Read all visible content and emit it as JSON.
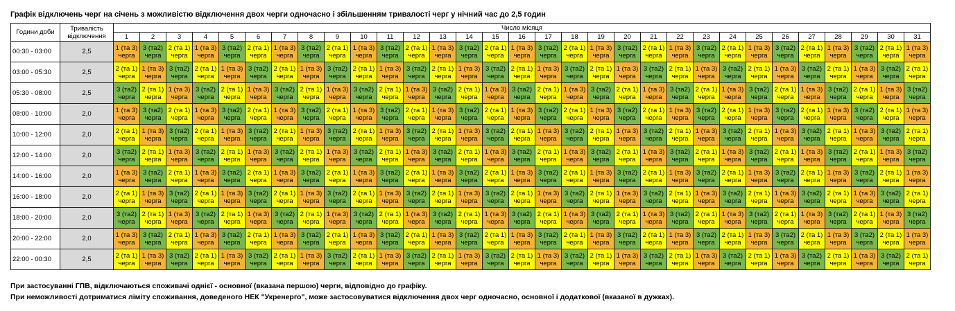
{
  "title": "Графік відключень черг на січень з можливістю відключення двох черги одночасно і збільшенням тривалості черг у нічний час до 2,5 годин",
  "table": {
    "header": {
      "hours": "Години доби",
      "duration": "Тривалість відключення",
      "days_label": "Число місяця",
      "days": [
        1,
        2,
        3,
        4,
        5,
        6,
        7,
        8,
        9,
        10,
        11,
        12,
        13,
        14,
        15,
        16,
        17,
        18,
        19,
        20,
        21,
        22,
        23,
        24,
        25,
        26,
        27,
        28,
        29,
        30,
        31
      ]
    },
    "caption": "черга",
    "queue_colors": {
      "1 (та 3)": "#f5b335",
      "3 (та2)": "#79b84d",
      "2 (та 1)": "#ffff00"
    },
    "rows": [
      {
        "time": "00:30 - 03:00",
        "duration": "2,5",
        "cells": [
          "1 (та 3)",
          "3 (та2)",
          "2 (та 1)",
          "1 (та 3)",
          "3 (та2)",
          "2 (та 1)",
          "1 (та 3)",
          "3 (та2)",
          "2 (та 1)",
          "1 (та 3)",
          "3 (та2)",
          "2 (та 1)",
          "1 (та 3)",
          "3 (та2)",
          "2 (та 1)",
          "1 (та 3)",
          "3 (та2)",
          "2 (та 1)",
          "1 (та 3)",
          "3 (та2)",
          "2 (та 1)",
          "1 (та 3)",
          "3 (та2)",
          "2 (та 1)",
          "1 (та 3)",
          "3 (та2)",
          "2 (та 1)",
          "1 (та 3)",
          "3 (та2)",
          "2 (та 1)",
          "1 (та 3)"
        ]
      },
      {
        "time": "03:00 - 05:30",
        "duration": "2,5",
        "cells": [
          "2 (та 1)",
          "1 (та 3)",
          "3 (та2)",
          "2 (та 1)",
          "1 (та 3)",
          "3 (та2)",
          "2 (та 1)",
          "1 (та 3)",
          "3 (та2)",
          "2 (та 1)",
          "1 (та 3)",
          "3 (та2)",
          "2 (та 1)",
          "1 (та 3)",
          "3 (та2)",
          "2 (та 1)",
          "1 (та 3)",
          "3 (та2)",
          "2 (та 1)",
          "1 (та 3)",
          "3 (та2)",
          "2 (та 1)",
          "1 (та 3)",
          "3 (та2)",
          "2 (та 1)",
          "1 (та 3)",
          "3 (та2)",
          "2 (та 1)",
          "1 (та 3)",
          "3 (та2)",
          "2 (та 1)"
        ]
      },
      {
        "time": "05:30 - 08:00",
        "duration": "2,5",
        "cells": [
          "3 (та2)",
          "2 (та 1)",
          "1 (та 3)",
          "3 (та2)",
          "2 (та 1)",
          "1 (та 3)",
          "3 (та2)",
          "2 (та 1)",
          "1 (та 3)",
          "3 (та2)",
          "2 (та 1)",
          "1 (та 3)",
          "3 (та2)",
          "2 (та 1)",
          "1 (та 3)",
          "3 (та2)",
          "2 (та 1)",
          "1 (та 3)",
          "3 (та2)",
          "2 (та 1)",
          "1 (та 3)",
          "3 (та2)",
          "2 (та 1)",
          "1 (та 3)",
          "3 (та2)",
          "2 (та 1)",
          "1 (та 3)",
          "3 (та2)",
          "2 (та 1)",
          "1 (та 3)",
          "3 (та2)"
        ]
      },
      {
        "time": "08:00 - 10:00",
        "duration": "2,0",
        "cells": [
          "1 (та 3)",
          "3 (та2)",
          "2 (та 1)",
          "1 (та 3)",
          "3 (та2)",
          "2 (та 1)",
          "1 (та 3)",
          "3 (та2)",
          "2 (та 1)",
          "1 (та 3)",
          "3 (та2)",
          "2 (та 1)",
          "1 (та 3)",
          "3 (та2)",
          "2 (та 1)",
          "1 (та 3)",
          "3 (та2)",
          "2 (та 1)",
          "1 (та 3)",
          "3 (та2)",
          "2 (та 1)",
          "1 (та 3)",
          "3 (та2)",
          "2 (та 1)",
          "1 (та 3)",
          "3 (та2)",
          "2 (та 1)",
          "1 (та 3)",
          "3 (та2)",
          "2 (та 1)",
          "1 (та 3)"
        ]
      },
      {
        "time": "10:00 - 12:00",
        "duration": "2,0",
        "cells": [
          "2 (та 1)",
          "1 (та 3)",
          "3 (та2)",
          "2 (та 1)",
          "1 (та 3)",
          "3 (та2)",
          "2 (та 1)",
          "1 (та 3)",
          "3 (та2)",
          "2 (та 1)",
          "1 (та 3)",
          "3 (та2)",
          "2 (та 1)",
          "1 (та 3)",
          "3 (та2)",
          "2 (та 1)",
          "1 (та 3)",
          "3 (та2)",
          "2 (та 1)",
          "1 (та 3)",
          "3 (та2)",
          "2 (та 1)",
          "1 (та 3)",
          "3 (та2)",
          "2 (та 1)",
          "1 (та 3)",
          "3 (та2)",
          "2 (та 1)",
          "1 (та 3)",
          "3 (та2)",
          "2 (та 1)"
        ]
      },
      {
        "time": "12:00 - 14:00",
        "duration": "2,0",
        "cells": [
          "3 (та2)",
          "2 (та 1)",
          "1 (та 3)",
          "3 (та2)",
          "2 (та 1)",
          "1 (та 3)",
          "3 (та2)",
          "2 (та 1)",
          "1 (та 3)",
          "3 (та2)",
          "2 (та 1)",
          "1 (та 3)",
          "3 (та2)",
          "2 (та 1)",
          "1 (та 3)",
          "3 (та2)",
          "2 (та 1)",
          "1 (та 3)",
          "3 (та2)",
          "2 (та 1)",
          "1 (та 3)",
          "3 (та2)",
          "2 (та 1)",
          "1 (та 3)",
          "3 (та2)",
          "2 (та 1)",
          "1 (та 3)",
          "3 (та2)",
          "2 (та 1)",
          "1 (та 3)",
          "3 (та2)"
        ]
      },
      {
        "time": "14:00 - 16:00",
        "duration": "2,0",
        "cells": [
          "1 (та 3)",
          "3 (та2)",
          "2 (та 1)",
          "1 (та 3)",
          "3 (та2)",
          "2 (та 1)",
          "1 (та 3)",
          "3 (та2)",
          "2 (та 1)",
          "1 (та 3)",
          "3 (та2)",
          "2 (та 1)",
          "1 (та 3)",
          "3 (та2)",
          "2 (та 1)",
          "1 (та 3)",
          "3 (та2)",
          "2 (та 1)",
          "1 (та 3)",
          "3 (та2)",
          "2 (та 1)",
          "1 (та 3)",
          "3 (та2)",
          "2 (та 1)",
          "1 (та 3)",
          "3 (та2)",
          "2 (та 1)",
          "1 (та 3)",
          "3 (та2)",
          "2 (та 1)",
          "1 (та 3)"
        ]
      },
      {
        "time": "16:00 - 18:00",
        "duration": "2,0",
        "cells": [
          "2 (та 1)",
          "1 (та 3)",
          "3 (та2)",
          "2 (та 1)",
          "1 (та 3)",
          "3 (та2)",
          "2 (та 1)",
          "1 (та 3)",
          "3 (та2)",
          "2 (та 1)",
          "1 (та 3)",
          "3 (та2)",
          "2 (та 1)",
          "1 (та 3)",
          "3 (та2)",
          "2 (та 1)",
          "1 (та 3)",
          "3 (та2)",
          "2 (та 1)",
          "1 (та 3)",
          "3 (та2)",
          "2 (та 1)",
          "1 (та 3)",
          "3 (та2)",
          "2 (та 1)",
          "1 (та 3)",
          "3 (та2)",
          "2 (та 1)",
          "1 (та 3)",
          "3 (та2)",
          "2 (та 1)"
        ]
      },
      {
        "time": "18:00 - 20:00",
        "duration": "2,0",
        "cells": [
          "3 (та2)",
          "2 (та 1)",
          "1 (та 3)",
          "3 (та2)",
          "2 (та 1)",
          "1 (та 3)",
          "3 (та2)",
          "2 (та 1)",
          "1 (та 3)",
          "3 (та2)",
          "2 (та 1)",
          "1 (та 3)",
          "3 (та2)",
          "2 (та 1)",
          "1 (та 3)",
          "3 (та2)",
          "2 (та 1)",
          "1 (та 3)",
          "3 (та2)",
          "2 (та 1)",
          "1 (та 3)",
          "3 (та2)",
          "2 (та 1)",
          "1 (та 3)",
          "3 (та2)",
          "2 (та 1)",
          "1 (та 3)",
          "3 (та2)",
          "2 (та 1)",
          "1 (та 3)",
          "3 (та2)"
        ]
      },
      {
        "time": "20:00 - 22:00",
        "duration": "2,0",
        "cells": [
          "1 (та 3)",
          "3 (та2)",
          "2 (та 1)",
          "1 (та 3)",
          "3 (та2)",
          "2 (та 1)",
          "1 (та 3)",
          "3 (та2)",
          "2 (та 1)",
          "1 (та 3)",
          "3 (та2)",
          "2 (та 1)",
          "1 (та 3)",
          "3 (та2)",
          "2 (та 1)",
          "1 (та 3)",
          "3 (та2)",
          "2 (та 1)",
          "1 (та 3)",
          "3 (та2)",
          "2 (та 1)",
          "1 (та 3)",
          "3 (та2)",
          "2 (та 1)",
          "1 (та 3)",
          "3 (та2)",
          "2 (та 1)",
          "1 (та 3)",
          "3 (та2)",
          "2 (та 1)",
          "1 (та 3)"
        ]
      },
      {
        "time": "22:00 - 00:30",
        "duration": "2,5",
        "cells": [
          "2 (та 1)",
          "1 (та 3)",
          "3 (та2)",
          "2 (та 1)",
          "1 (та 3)",
          "3 (та2)",
          "2 (та 1)",
          "1 (та 3)",
          "3 (та2)",
          "2 (та 1)",
          "1 (та 3)",
          "3 (та2)",
          "2 (та 1)",
          "1 (та 3)",
          "3 (та2)",
          "2 (та 1)",
          "1 (та 3)",
          "3 (та2)",
          "2 (та 1)",
          "1 (та 3)",
          "3 (та2)",
          "2 (та 1)",
          "1 (та 3)",
          "3 (та2)",
          "2 (та 1)",
          "1 (та 3)",
          "3 (та2)",
          "2 (та 1)",
          "1 (та 3)",
          "3 (та2)",
          "2 (та 1)"
        ]
      }
    ]
  },
  "notes": [
    "При застосуванні ГПВ, відключаються споживачі однієї - основної (вказана першою) черги, відповідно до графіку.",
    "При неможливості дотриматися ліміту споживання, доведеного НЕК \"Укренерго\", може застосовуватися відключення двох черг одночасно, основної і додаткової (вказаної в дужках)."
  ]
}
